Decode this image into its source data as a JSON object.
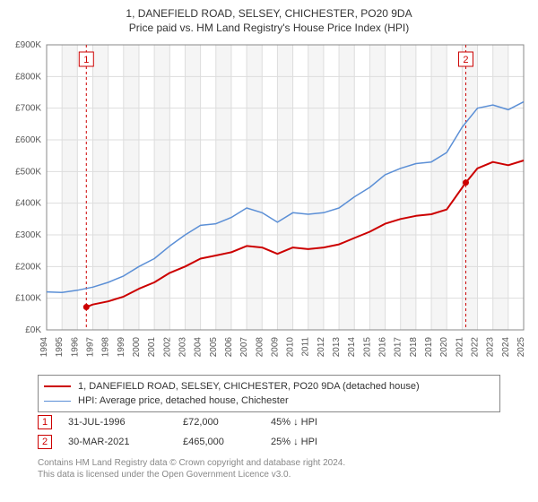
{
  "title_line1": "1, DANEFIELD ROAD, SELSEY, CHICHESTER, PO20 9DA",
  "title_line2": "Price paid vs. HM Land Registry's House Price Index (HPI)",
  "chart": {
    "type": "line",
    "background_color": "#ffffff",
    "plot_band_color": "#f5f5f5",
    "grid_color": "#dddddd",
    "axis_color": "#888888",
    "ylabel_prefix": "£",
    "ylabel_suffix": "K",
    "ylim": [
      0,
      900
    ],
    "ytick_step": 100,
    "xlim": [
      1994,
      2025
    ],
    "xtick_step": 1,
    "label_fontsize": 10,
    "series": [
      {
        "name": "price_paid",
        "label": "1, DANEFIELD ROAD, SELSEY, CHICHESTER, PO20 9DA (detached house)",
        "color": "#cc0000",
        "line_width": 2,
        "data": [
          [
            1996.58,
            72
          ],
          [
            1997,
            80
          ],
          [
            1998,
            90
          ],
          [
            1999,
            105
          ],
          [
            2000,
            130
          ],
          [
            2001,
            150
          ],
          [
            2002,
            180
          ],
          [
            2003,
            200
          ],
          [
            2004,
            225
          ],
          [
            2005,
            235
          ],
          [
            2006,
            245
          ],
          [
            2007,
            265
          ],
          [
            2008,
            260
          ],
          [
            2009,
            240
          ],
          [
            2010,
            260
          ],
          [
            2011,
            255
          ],
          [
            2012,
            260
          ],
          [
            2013,
            270
          ],
          [
            2014,
            290
          ],
          [
            2015,
            310
          ],
          [
            2016,
            335
          ],
          [
            2017,
            350
          ],
          [
            2018,
            360
          ],
          [
            2019,
            365
          ],
          [
            2020,
            380
          ],
          [
            2021.24,
            465
          ],
          [
            2022,
            510
          ],
          [
            2023,
            530
          ],
          [
            2024,
            520
          ],
          [
            2025,
            535
          ]
        ]
      },
      {
        "name": "hpi",
        "label": "HPI: Average price, detached house, Chichester",
        "color": "#5b8fd6",
        "line_width": 1.5,
        "data": [
          [
            1994,
            120
          ],
          [
            1995,
            118
          ],
          [
            1996,
            125
          ],
          [
            1997,
            135
          ],
          [
            1998,
            150
          ],
          [
            1999,
            170
          ],
          [
            2000,
            200
          ],
          [
            2001,
            225
          ],
          [
            2002,
            265
          ],
          [
            2003,
            300
          ],
          [
            2004,
            330
          ],
          [
            2005,
            335
          ],
          [
            2006,
            355
          ],
          [
            2007,
            385
          ],
          [
            2008,
            370
          ],
          [
            2009,
            340
          ],
          [
            2010,
            370
          ],
          [
            2011,
            365
          ],
          [
            2012,
            370
          ],
          [
            2013,
            385
          ],
          [
            2014,
            420
          ],
          [
            2015,
            450
          ],
          [
            2016,
            490
          ],
          [
            2017,
            510
          ],
          [
            2018,
            525
          ],
          [
            2019,
            530
          ],
          [
            2020,
            560
          ],
          [
            2021,
            640
          ],
          [
            2022,
            700
          ],
          [
            2023,
            710
          ],
          [
            2024,
            695
          ],
          [
            2025,
            720
          ]
        ]
      }
    ],
    "markers": [
      {
        "id": "1",
        "x": 1996.58,
        "y": 72,
        "badge_color": "#cc0000",
        "dot_color": "#cc0000",
        "line_color": "#cc0000",
        "date": "31-JUL-1996",
        "price": "£72,000",
        "delta": "45% ↓ HPI"
      },
      {
        "id": "2",
        "x": 2021.24,
        "y": 465,
        "badge_color": "#cc0000",
        "dot_color": "#cc0000",
        "line_color": "#cc0000",
        "date": "30-MAR-2021",
        "price": "£465,000",
        "delta": "25% ↓ HPI"
      }
    ]
  },
  "footer_line1": "Contains HM Land Registry data © Crown copyright and database right 2024.",
  "footer_line2": "This data is licensed under the Open Government Licence v3.0."
}
